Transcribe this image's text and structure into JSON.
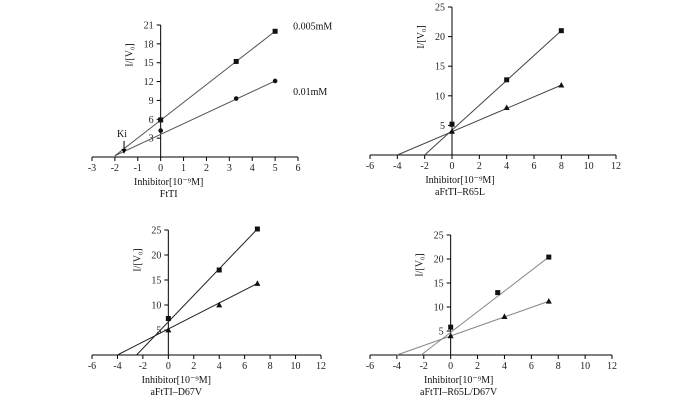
{
  "chart_data": [
    {
      "type": "line",
      "caption": "FtTI",
      "xlabel": "Inhibitor[10⁻⁹M]",
      "ylabel": "I/[V₀]",
      "xlim": [
        -3,
        6
      ],
      "ylim": [
        0,
        21
      ],
      "xticks": [
        -3,
        -2,
        -1,
        0,
        1,
        2,
        3,
        4,
        5,
        6
      ],
      "yticks": [
        3,
        6,
        9,
        12,
        15,
        18,
        21
      ],
      "series": [
        {
          "name": "0.005mM",
          "marker": "square",
          "color": "#555555",
          "x": [
            -2.0,
            0,
            3.3,
            5.0
          ],
          "y": [
            0.2,
            5.9,
            15.2,
            20.0
          ],
          "label": "0.005mM"
        },
        {
          "name": "0.01mM",
          "marker": "circle",
          "color": "#555555",
          "x": [
            -2.0,
            0,
            3.3,
            5.0
          ],
          "y": [
            0.2,
            4.2,
            9.3,
            12.1
          ],
          "label": "0.01mM"
        }
      ],
      "annotation": {
        "text": "Ki",
        "x": -1.6,
        "y": 0.5
      }
    },
    {
      "type": "line",
      "caption": "aFtTI–R65L",
      "xlabel": "Inhibitor[10⁻⁹M]",
      "ylabel": "I/[V₀]",
      "xlim": [
        -6,
        12
      ],
      "ylim": [
        0,
        25
      ],
      "xticks": [
        -6,
        -4,
        -2,
        0,
        2,
        4,
        6,
        8,
        10,
        12
      ],
      "yticks": [
        5,
        10,
        15,
        20,
        25
      ],
      "series": [
        {
          "name": "square",
          "marker": "square",
          "color": "#444444",
          "x": [
            -2.0,
            0,
            4.0,
            8.0
          ],
          "y": [
            0,
            5.2,
            12.7,
            21.0
          ]
        },
        {
          "name": "triangle",
          "marker": "triangle",
          "color": "#444444",
          "x": [
            -4.0,
            0,
            4.0,
            8.0
          ],
          "y": [
            0,
            4.0,
            8.0,
            11.8
          ]
        }
      ]
    },
    {
      "type": "line",
      "caption": "aFtTI–D67V",
      "xlabel": "Inhibitor[10⁻⁹M]",
      "ylabel": "I/[V₀]",
      "xlim": [
        -6,
        12
      ],
      "ylim": [
        0,
        25
      ],
      "xticks": [
        -6,
        -4,
        -2,
        0,
        2,
        4,
        6,
        8,
        10,
        12
      ],
      "yticks": [
        5,
        10,
        15,
        20,
        25
      ],
      "series": [
        {
          "name": "square",
          "marker": "square",
          "color": "#222222",
          "x": [
            -2.5,
            0,
            4.0,
            7.0
          ],
          "y": [
            0,
            7.3,
            17.0,
            25.2
          ]
        },
        {
          "name": "triangle",
          "marker": "triangle",
          "color": "#222222",
          "x": [
            -4.0,
            0,
            4.0,
            7.0
          ],
          "y": [
            0,
            5.0,
            10.0,
            14.3
          ]
        }
      ]
    },
    {
      "type": "line",
      "caption": "aFtTI–R65L/D67V",
      "xlabel": "Inhibitor[10⁻⁹M]",
      "ylabel": "I/[V₀]",
      "xlim": [
        -6,
        12
      ],
      "ylim": [
        0,
        25
      ],
      "xticks": [
        -6,
        -4,
        -2,
        0,
        2,
        4,
        6,
        8,
        10,
        12
      ],
      "yticks": [
        5,
        10,
        15,
        20,
        25
      ],
      "series": [
        {
          "name": "square",
          "marker": "square",
          "color": "#888888",
          "x": [
            -2.2,
            0,
            3.5,
            7.3
          ],
          "y": [
            0,
            5.8,
            13.0,
            20.4
          ]
        },
        {
          "name": "triangle",
          "marker": "triangle",
          "color": "#888888",
          "x": [
            -4.0,
            0,
            4.0,
            7.3
          ],
          "y": [
            0,
            4.0,
            8.0,
            11.2
          ]
        }
      ]
    }
  ]
}
